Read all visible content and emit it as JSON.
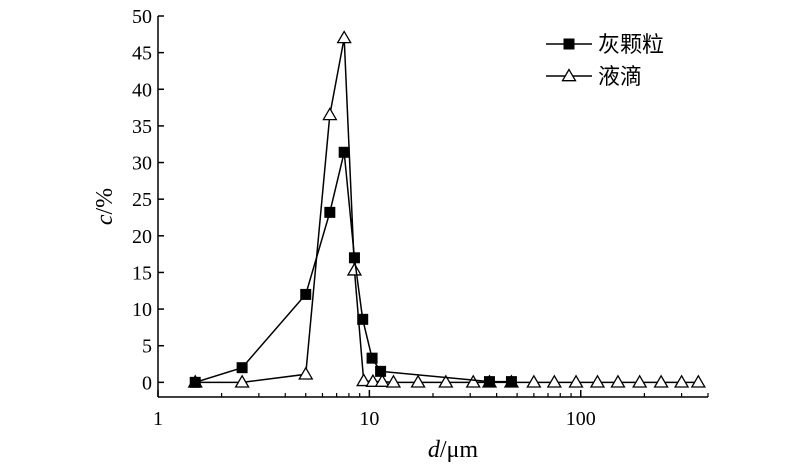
{
  "chart_data": {
    "type": "line",
    "xscale": "log",
    "xlim": [
      1,
      400
    ],
    "ylim": [
      -2,
      50
    ],
    "xticks": [
      1,
      10,
      100
    ],
    "xtick_labels": [
      "1",
      "10",
      "100"
    ],
    "yticks": [
      0,
      5,
      10,
      15,
      20,
      25,
      30,
      35,
      40,
      45,
      50
    ],
    "ytick_labels": [
      "0",
      "5",
      "10",
      "15",
      "20",
      "25",
      "30",
      "35",
      "40",
      "45",
      "50"
    ],
    "xlabel_italic": "d",
    "xlabel_rest": "/μm",
    "ylabel_italic": "c",
    "ylabel_rest": "/%",
    "grid": false,
    "legend_position": "top-right",
    "series": [
      {
        "name": "灰颗粒",
        "marker": "filled-square",
        "x": [
          1.5,
          2.5,
          5,
          6.5,
          7.6,
          8.5,
          9.3,
          10.3,
          11.3,
          37,
          47
        ],
        "y": [
          0,
          2,
          12,
          23.2,
          31.4,
          17,
          8.6,
          3.3,
          1.5,
          0.1,
          0.1
        ]
      },
      {
        "name": "液滴",
        "marker": "open-triangle",
        "x": [
          1.5,
          2.5,
          5,
          6.5,
          7.6,
          8.5,
          9.4,
          10.4,
          11.5,
          13,
          17,
          23,
          31,
          37,
          47,
          60,
          75,
          95,
          120,
          150,
          190,
          240,
          300,
          360
        ],
        "y": [
          0,
          0,
          1.1,
          36.5,
          47,
          15.3,
          0.2,
          0.1,
          0.1,
          0,
          0,
          0,
          0,
          0,
          0,
          0,
          0,
          0,
          0,
          0,
          0,
          0,
          0,
          0
        ]
      }
    ]
  }
}
